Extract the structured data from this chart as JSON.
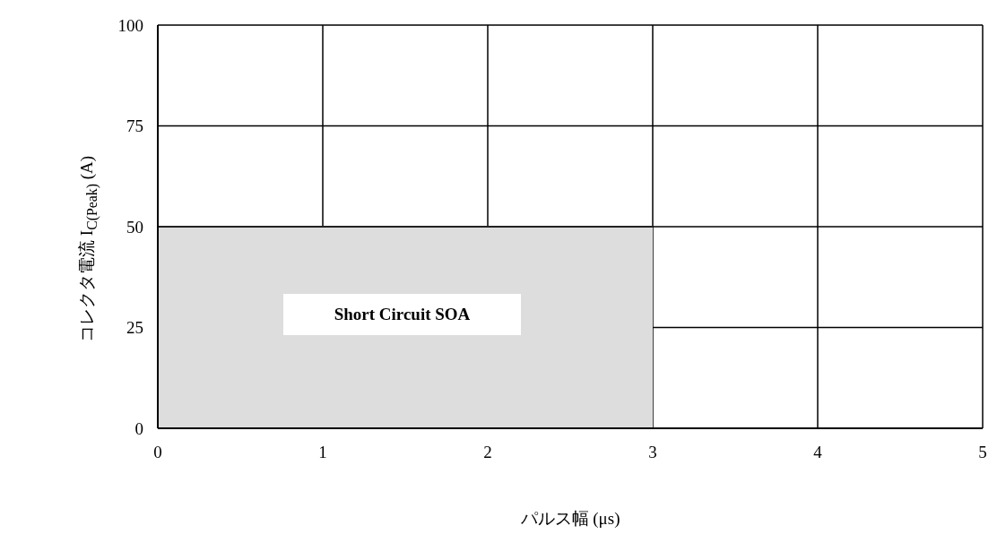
{
  "chart_data": {
    "type": "area",
    "xlabel": "パルス幅 (μs)",
    "ylabel": "コレクタ電流 I$_{C(Peak)}$ (A)",
    "series": [
      {
        "x": [
          0,
          3
        ],
        "values": [
          50,
          50
        ],
        "color": "#dddddd"
      }
    ],
    "xlim": [
      0,
      5
    ],
    "xticks": [
      0,
      1,
      2,
      3,
      4,
      5
    ],
    "ylim": [
      0,
      100
    ],
    "yticks": [
      0,
      25,
      50,
      75,
      100
    ],
    "grid": true,
    "legend": false,
    "annotations": [
      "Short Circuit SOA"
    ]
  }
}
